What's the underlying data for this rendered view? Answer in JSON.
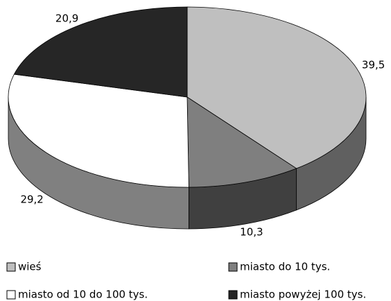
{
  "chart_data": {
    "type": "pie",
    "categories": [
      "wieś",
      "miasto do 10 tys.",
      "miasto od 10 do 100 tys.",
      "miasto powyżej 100 tys."
    ],
    "values": [
      39.5,
      10.3,
      29.2,
      20.9
    ],
    "value_labels": [
      "39,5",
      "10,3",
      "29,2",
      "20,9"
    ],
    "colors": [
      "#bfbfbf",
      "#7f7f7f",
      "#ffffff",
      "#262626"
    ]
  }
}
